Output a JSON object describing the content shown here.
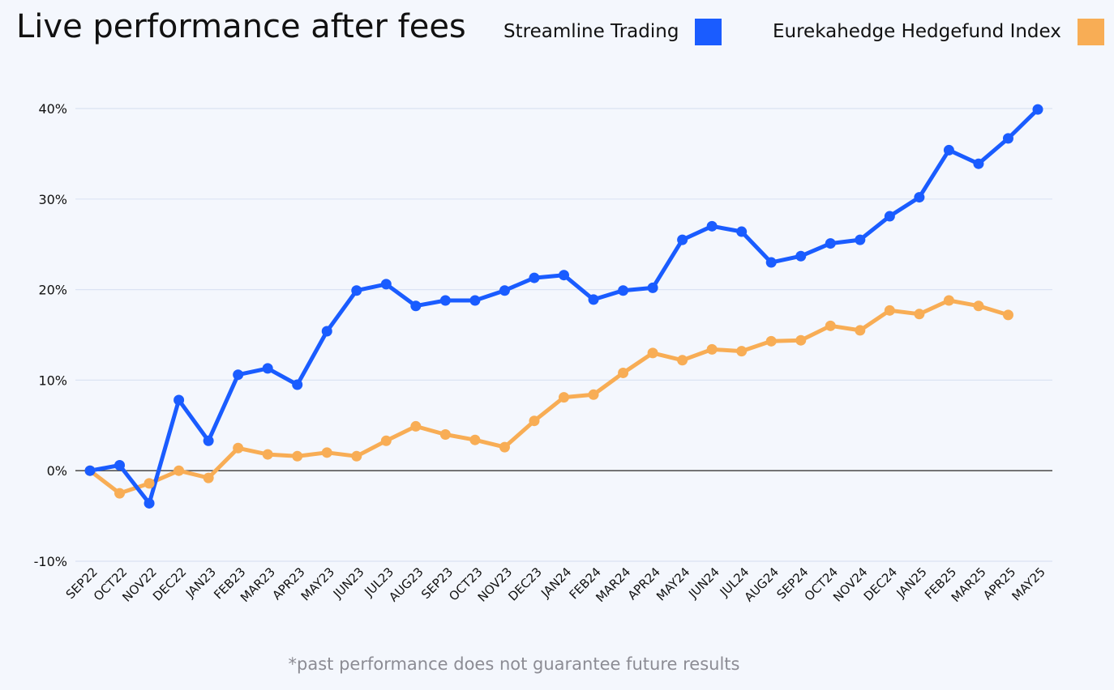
{
  "chart_data": {
    "type": "line",
    "title": "Live performance after fees",
    "footnote": "*past performance does not guarantee future results",
    "categories": [
      "SEP22",
      "OCT22",
      "NOV22",
      "DEC22",
      "JAN23",
      "FEB23",
      "MAR23",
      "APR23",
      "MAY23",
      "JUN23",
      "JUL23",
      "AUG23",
      "SEP23",
      "OCT23",
      "NOV23",
      "DEC23",
      "JAN24",
      "FEB24",
      "MAR24",
      "APR24",
      "MAY24",
      "JUN24",
      "JUL24",
      "AUG24",
      "SEP24",
      "OCT24",
      "NOV24",
      "DEC24",
      "JAN25",
      "FEB25",
      "MAR25",
      "APR25",
      "MAY25"
    ],
    "ylim": [
      -10,
      40
    ],
    "yticks": [
      40,
      30,
      20,
      10,
      0,
      -10
    ],
    "ytick_labels": [
      "40%",
      "30%",
      "20%",
      "10%",
      "0%",
      "-10%"
    ],
    "grid": true,
    "legend_position": "top-right",
    "series": [
      {
        "name": "Streamline Trading",
        "color": "#1a5cff",
        "values": [
          0.0,
          0.6,
          -3.6,
          7.8,
          3.3,
          10.6,
          11.3,
          9.5,
          15.4,
          19.9,
          20.6,
          18.2,
          18.8,
          18.8,
          19.9,
          21.3,
          21.6,
          18.9,
          19.9,
          20.2,
          25.5,
          27.0,
          26.4,
          23.0,
          23.7,
          25.1,
          25.5,
          28.1,
          30.2,
          35.4,
          33.9,
          36.7,
          39.9
        ]
      },
      {
        "name": "Eurekahedge Hedgefund Index",
        "color": "#f8ad55",
        "values": [
          0.0,
          -2.5,
          -1.4,
          0.0,
          -0.8,
          2.5,
          1.8,
          1.6,
          2.0,
          1.6,
          3.3,
          4.9,
          4.0,
          3.4,
          2.6,
          5.5,
          8.1,
          8.4,
          10.8,
          13.0,
          12.2,
          13.4,
          13.2,
          14.3,
          14.4,
          16.0,
          15.5,
          17.7,
          17.3,
          18.8,
          18.2,
          17.2,
          null
        ]
      }
    ]
  }
}
